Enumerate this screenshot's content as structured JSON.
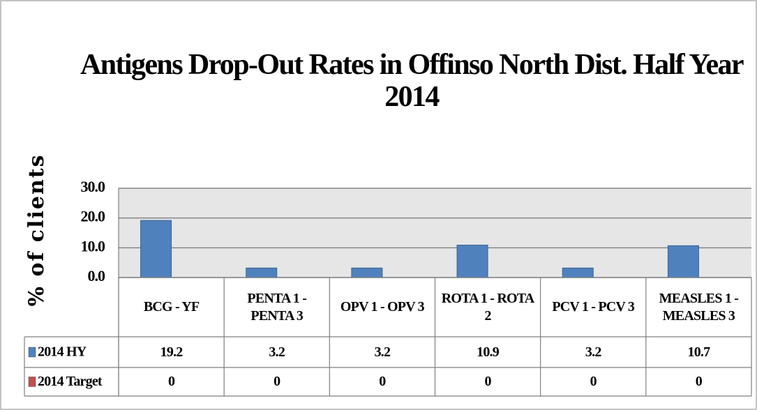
{
  "chart_data": {
    "type": "bar",
    "title": "Antigens Drop-Out Rates in Offinso North Dist. Half Year 2014",
    "y_label": "% of clients",
    "categories": [
      "BCG - YF",
      "PENTA 1 - PENTA 3",
      "OPV 1 - OPV 3",
      "ROTA 1 - ROTA 2",
      "PCV 1 - PCV 3",
      "MEASLES 1 - MEASLES 3"
    ],
    "series": [
      {
        "name": "2014 HY",
        "color": "#4f81bd",
        "values": [
          19.2,
          3.2,
          3.2,
          10.9,
          3.2,
          10.7
        ]
      },
      {
        "name": "2014 Target",
        "color": "#c0504d",
        "values": [
          0,
          0,
          0,
          0,
          0,
          0
        ]
      }
    ],
    "ylim": [
      0,
      30
    ],
    "yticks": [
      {
        "value": 0,
        "label": "0.0"
      },
      {
        "value": 10,
        "label": "10.0"
      },
      {
        "value": 20,
        "label": "20.0"
      },
      {
        "value": 30,
        "label": "30.0"
      }
    ],
    "grid": true,
    "data_table": true
  }
}
